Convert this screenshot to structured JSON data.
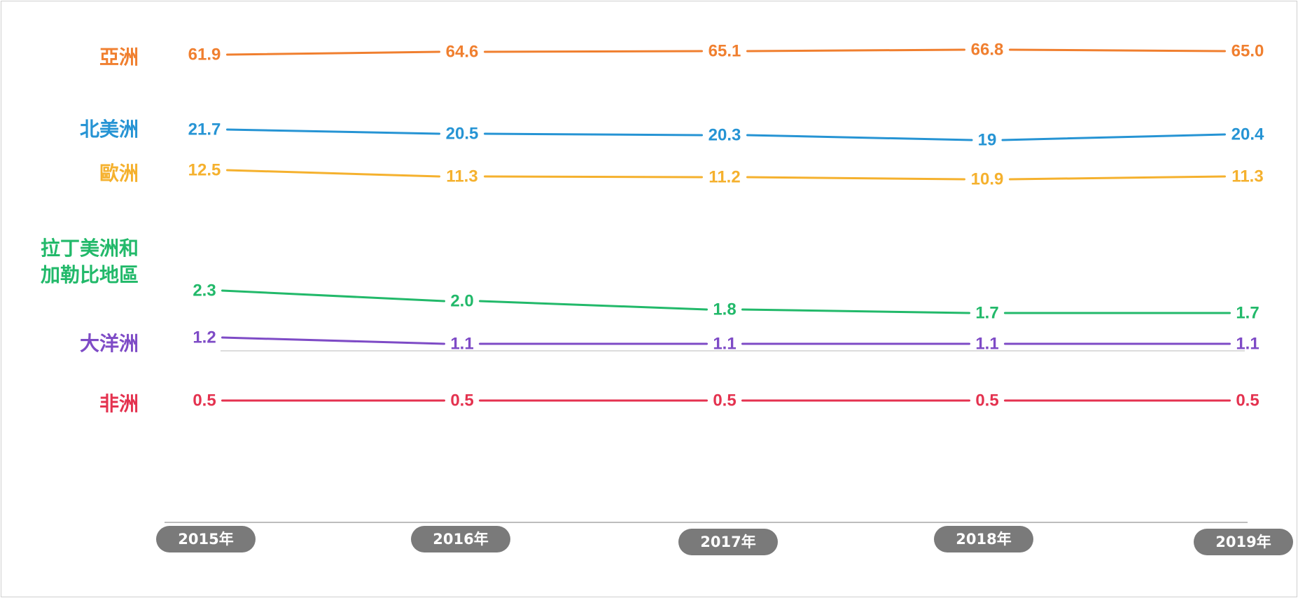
{
  "chart_data": {
    "type": "line",
    "title": "",
    "xlabel": "",
    "ylabel": "",
    "grid": false,
    "legend": "left",
    "categories": [
      "2015年",
      "2016年",
      "2017年",
      "2018年",
      "2019年"
    ],
    "series": [
      {
        "name": "亞洲",
        "values": [
          "61.9",
          "64.6",
          "65.1",
          "66.8",
          "65.0"
        ],
        "color": "#F07F2F"
      },
      {
        "name": "北美洲",
        "values": [
          "21.7",
          "20.5",
          "20.3",
          "19",
          "20.4"
        ],
        "color": "#2694D4"
      },
      {
        "name": "歐洲",
        "values": [
          "12.5",
          "11.3",
          "11.2",
          "10.9",
          "11.3"
        ],
        "color": "#F5B12E"
      },
      {
        "name": "拉丁美洲和\n加勒比地區",
        "values": [
          "2.3",
          "2.0",
          "1.8",
          "1.7",
          "1.7"
        ],
        "color": "#22B96A"
      },
      {
        "name": "大洋洲",
        "values": [
          "1.2",
          "1.1",
          "1.1",
          "1.1",
          "1.1"
        ],
        "color": "#7E4BC6"
      },
      {
        "name": "非洲",
        "values": [
          "0.5",
          "0.5",
          "0.5",
          "0.5",
          "0.5"
        ],
        "color": "#E4324F"
      }
    ]
  }
}
